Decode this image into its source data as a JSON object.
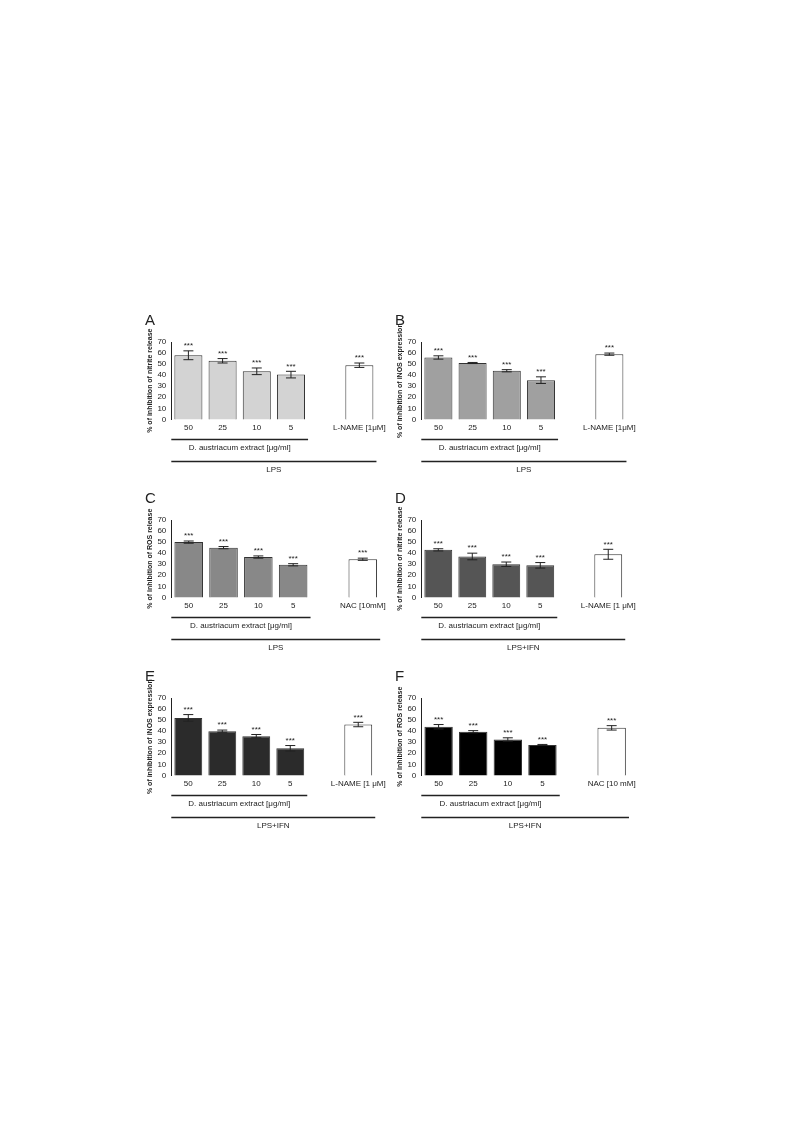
{
  "chart_data": [
    {
      "type": "bar",
      "title": "A",
      "ylabel": "% of inhibition of nitrite release",
      "categories": [
        "50",
        "25",
        "10",
        "5",
        null,
        "L-NAME [1μM]"
      ],
      "values": [
        58,
        53,
        43.5,
        40.5,
        null,
        49
      ],
      "errors": [
        4,
        2,
        3,
        3,
        null,
        2
      ],
      "colors": [
        "#d3d3d3",
        "#d3d3d3",
        "#d3d3d3",
        "#d3d3d3",
        "#d3d3d3",
        "#ffffff"
      ],
      "ylim": [
        0,
        70
      ],
      "yticks": [
        0,
        10,
        20,
        30,
        40,
        50,
        60,
        70
      ],
      "grid": false,
      "legend": false,
      "annotations": [
        "D. austriacum extract [μg/ml]",
        "LPS",
        {
          "text": "***",
          "x": "50",
          "y": 62
        },
        {
          "text": "***",
          "x": "25",
          "y": 55
        },
        {
          "text": "***",
          "x": "10",
          "y": 46.5
        },
        {
          "text": "***",
          "x": "5",
          "y": 43.5
        },
        {
          "text": "***",
          "x": "L-NAME [1μM]",
          "y": 51
        }
      ]
    },
    {
      "type": "bar",
      "title": "B",
      "ylabel": "% of inhibition of iNOS expression",
      "categories": [
        "50",
        "25",
        "10",
        "5",
        null,
        "L-NAME [1μM]"
      ],
      "values": [
        56,
        51,
        44,
        35.5,
        null,
        59
      ],
      "errors": [
        1.5,
        0.5,
        1,
        3,
        null,
        1
      ],
      "colors": [
        "#a0a0a0",
        "#a0a0a0",
        "#a0a0a0",
        "#a0a0a0",
        "#a0a0a0",
        "#ffffff"
      ],
      "ylim": [
        0,
        70
      ],
      "yticks": [
        0,
        10,
        20,
        30,
        40,
        50,
        60,
        70
      ],
      "grid": false,
      "legend": false,
      "annotations": [
        "D. austriacum extract [μg/ml]",
        "LPS",
        {
          "text": "***",
          "x": "50",
          "y": 57.5
        },
        {
          "text": "***",
          "x": "25",
          "y": 51.5
        },
        {
          "text": "***",
          "x": "10",
          "y": 45
        },
        {
          "text": "***",
          "x": "5",
          "y": 38.5
        },
        {
          "text": "***",
          "x": "L-NAME [1μM]",
          "y": 60
        }
      ]
    },
    {
      "type": "bar",
      "title": "C",
      "ylabel": "% of inhibition of ROS release",
      "categories": [
        "50",
        "25",
        "10",
        "5",
        null,
        "NAC [10mM]"
      ],
      "values": [
        50,
        45,
        36.5,
        29.5,
        null,
        34.5
      ],
      "errors": [
        1,
        1,
        1,
        1,
        null,
        1
      ],
      "colors": [
        "#888888",
        "#888888",
        "#888888",
        "#888888",
        "#888888",
        "#ffffff"
      ],
      "ylim": [
        0,
        70
      ],
      "yticks": [
        0,
        10,
        20,
        30,
        40,
        50,
        60,
        70
      ],
      "grid": false,
      "legend": false,
      "annotations": [
        "D. austriacum extract [μg/ml]",
        "LPS",
        {
          "text": "***",
          "x": "50",
          "y": 51
        },
        {
          "text": "***",
          "x": "25",
          "y": 46
        },
        {
          "text": "***",
          "x": "10",
          "y": 37.5
        },
        {
          "text": "***",
          "x": "5",
          "y": 30.5
        },
        {
          "text": "***",
          "x": "NAC [10mM]",
          "y": 35.5
        }
      ]
    },
    {
      "type": "bar",
      "title": "D",
      "ylabel": "% of inhibition of nitrite release",
      "categories": [
        "50",
        "25",
        "10",
        "5",
        null,
        "L-NAME [1 μM]"
      ],
      "values": [
        43,
        37,
        30,
        29,
        null,
        39
      ],
      "errors": [
        1,
        3,
        2,
        2.5,
        null,
        4.5
      ],
      "colors": [
        "#555555",
        "#555555",
        "#555555",
        "#555555",
        "#555555",
        "#ffffff"
      ],
      "ylim": [
        0,
        70
      ],
      "yticks": [
        0,
        10,
        20,
        30,
        40,
        50,
        60,
        70
      ],
      "grid": false,
      "legend": false,
      "annotations": [
        "D. austriacum extract [μg/ml]",
        "LPS+IFN",
        {
          "text": "***",
          "x": "50",
          "y": 44
        },
        {
          "text": "***",
          "x": "25",
          "y": 40
        },
        {
          "text": "***",
          "x": "10",
          "y": 32
        },
        {
          "text": "***",
          "x": "5",
          "y": 31.5
        },
        {
          "text": "***",
          "x": "L-NAME [1 μM]",
          "y": 43.5
        }
      ]
    },
    {
      "type": "bar",
      "title": "E",
      "ylabel": "% of inhibition of iNOS expression",
      "categories": [
        "50",
        "25",
        "10",
        "5",
        null,
        "L-NAME [1 μM]"
      ],
      "values": [
        52,
        40,
        35.5,
        24.5,
        null,
        46
      ],
      "errors": [
        3,
        1,
        1.5,
        2.5,
        null,
        2
      ],
      "colors": [
        "#2b2b2b",
        "#2b2b2b",
        "#2b2b2b",
        "#2b2b2b",
        "#2b2b2b",
        "#ffffff"
      ],
      "ylim": [
        0,
        70
      ],
      "yticks": [
        0,
        10,
        20,
        30,
        40,
        50,
        60,
        70
      ],
      "grid": false,
      "legend": false,
      "annotations": [
        "D. austriacum extract [μg/ml]",
        "LPS+IFN",
        {
          "text": "***",
          "x": "50",
          "y": 55
        },
        {
          "text": "***",
          "x": "25",
          "y": 41
        },
        {
          "text": "***",
          "x": "10",
          "y": 37
        },
        {
          "text": "***",
          "x": "5",
          "y": 27
        },
        {
          "text": "***",
          "x": "L-NAME [1 μM]",
          "y": 48
        }
      ]
    },
    {
      "type": "bar",
      "title": "F",
      "ylabel": "% of inhibition of ROS release",
      "categories": [
        "50",
        "25",
        "10",
        "5",
        null,
        "NAC [10 mM]"
      ],
      "values": [
        44,
        39.5,
        32.5,
        27.5,
        null,
        43
      ],
      "errors": [
        2,
        1,
        1.5,
        0.5,
        null,
        2
      ],
      "colors": [
        "#000000",
        "#000000",
        "#000000",
        "#000000",
        "#000000",
        "#ffffff"
      ],
      "ylim": [
        0,
        70
      ],
      "yticks": [
        0,
        10,
        20,
        30,
        40,
        50,
        60,
        70
      ],
      "grid": false,
      "legend": false,
      "annotations": [
        "D. austriacum extract [μg/ml]",
        "LPS+IFN",
        {
          "text": "***",
          "x": "50",
          "y": 46
        },
        {
          "text": "***",
          "x": "25",
          "y": 40.5
        },
        {
          "text": "***",
          "x": "10",
          "y": 34
        },
        {
          "text": "***",
          "x": "5",
          "y": 28
        },
        {
          "text": "***",
          "x": "NAC [10 mM]",
          "y": 45
        }
      ]
    }
  ]
}
